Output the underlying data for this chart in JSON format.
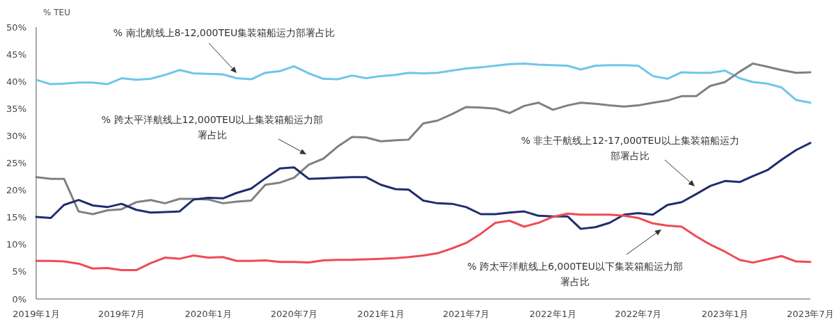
{
  "chart_data": {
    "type": "line",
    "ylabel": "% TEU",
    "grid": false,
    "marker": "none",
    "line_style": "solid",
    "x": [
      "2019-01",
      "2019-02",
      "2019-03",
      "2019-04",
      "2019-05",
      "2019-06",
      "2019-07",
      "2019-08",
      "2019-09",
      "2019-10",
      "2019-11",
      "2019-12",
      "2020-01",
      "2020-02",
      "2020-03",
      "2020-04",
      "2020-05",
      "2020-06",
      "2020-07",
      "2020-08",
      "2020-09",
      "2020-10",
      "2020-11",
      "2020-12",
      "2021-01",
      "2021-02",
      "2021-03",
      "2021-04",
      "2021-05",
      "2021-06",
      "2021-07",
      "2021-08",
      "2021-09",
      "2021-10",
      "2021-11",
      "2021-12",
      "2022-01",
      "2022-02",
      "2022-03",
      "2022-04",
      "2022-05",
      "2022-06",
      "2022-07",
      "2022-08",
      "2022-09",
      "2022-10",
      "2022-11",
      "2022-12",
      "2023-01",
      "2023-02",
      "2023-03",
      "2023-04",
      "2023-05",
      "2023-06",
      "2023-07"
    ],
    "xlim": [
      "2019-01",
      "2023-07"
    ],
    "xticks": [
      {
        "value": "2019-01",
        "label": "2019年1月"
      },
      {
        "value": "2019-07",
        "label": "2019年7月"
      },
      {
        "value": "2020-01",
        "label": "2020年1月"
      },
      {
        "value": "2020-07",
        "label": "2020年7月"
      },
      {
        "value": "2021-01",
        "label": "2021年1月"
      },
      {
        "value": "2021-07",
        "label": "2021年7月"
      },
      {
        "value": "2022-01",
        "label": "2022年1月"
      },
      {
        "value": "2022-07",
        "label": "2022年7月"
      },
      {
        "value": "2023-01",
        "label": "2023年1月"
      },
      {
        "value": "2023-07",
        "label": "2023年7月"
      }
    ],
    "ylim": [
      0,
      50
    ],
    "yticks": [
      {
        "value": 0,
        "label": "0%"
      },
      {
        "value": 5,
        "label": "5%"
      },
      {
        "value": 10,
        "label": "10%"
      },
      {
        "value": 15,
        "label": "15%"
      },
      {
        "value": 20,
        "label": "20%"
      },
      {
        "value": 25,
        "label": "25%"
      },
      {
        "value": 30,
        "label": "30%"
      },
      {
        "value": 35,
        "label": "35%"
      },
      {
        "value": 40,
        "label": "40%"
      },
      {
        "value": 45,
        "label": "45%"
      },
      {
        "value": 50,
        "label": "50%"
      }
    ],
    "series": [
      {
        "color": "#6ec6ea",
        "values": [
          40.3,
          39.5,
          39.6,
          39.8,
          39.8,
          39.5,
          40.6,
          40.3,
          40.5,
          41.2,
          42.1,
          41.5,
          41.4,
          41.3,
          40.6,
          40.4,
          41.6,
          41.9,
          42.8,
          41.5,
          40.5,
          40.4,
          41.1,
          40.6,
          41.0,
          41.2,
          41.6,
          41.5,
          41.6,
          42.0,
          42.4,
          42.6,
          42.9,
          43.2,
          43.3,
          43.1,
          43.0,
          42.9,
          42.2,
          42.9,
          43.0,
          43.0,
          42.9,
          41.0,
          40.5,
          41.7,
          41.6,
          41.6,
          42.0,
          40.6,
          39.9,
          39.6,
          38.9,
          36.6,
          36.1
        ]
      },
      {
        "color": "#808080",
        "values": [
          22.4,
          22.1,
          22.1,
          16.1,
          15.6,
          16.3,
          16.5,
          17.8,
          18.2,
          17.6,
          18.4,
          18.4,
          18.3,
          17.6,
          17.9,
          18.1,
          21.0,
          21.4,
          22.3,
          24.7,
          25.8,
          28.0,
          29.8,
          29.7,
          29.0,
          29.2,
          29.3,
          32.3,
          32.8,
          34.0,
          35.3,
          35.2,
          35.0,
          34.2,
          35.5,
          36.1,
          34.8,
          35.6,
          36.1,
          35.9,
          35.6,
          35.4,
          35.6,
          36.1,
          36.5,
          37.3,
          37.3,
          39.2,
          39.9,
          41.8,
          43.3,
          42.7,
          42.1,
          41.6,
          41.7
        ]
      },
      {
        "color": "#1f2d6e",
        "values": [
          15.1,
          14.9,
          17.3,
          18.2,
          17.2,
          16.9,
          17.5,
          16.4,
          15.9,
          16.0,
          16.1,
          18.3,
          18.6,
          18.5,
          19.5,
          20.3,
          22.2,
          24.0,
          24.2,
          22.1,
          22.2,
          22.3,
          22.4,
          22.4,
          21.0,
          20.2,
          20.1,
          18.1,
          17.6,
          17.5,
          16.9,
          15.6,
          15.6,
          15.9,
          16.1,
          15.3,
          15.2,
          15.2,
          12.9,
          13.2,
          14.0,
          15.5,
          15.8,
          15.5,
          17.3,
          17.8,
          19.3,
          20.8,
          21.7,
          21.5,
          22.6,
          23.7,
          25.6,
          27.4,
          28.7
        ]
      },
      {
        "color": "#ee4b55",
        "values": [
          7.0,
          7.0,
          6.9,
          6.5,
          5.6,
          5.7,
          5.3,
          5.3,
          6.6,
          7.6,
          7.4,
          8.0,
          7.6,
          7.7,
          7.0,
          7.0,
          7.1,
          6.8,
          6.8,
          6.7,
          7.1,
          7.2,
          7.2,
          7.3,
          7.4,
          7.5,
          7.7,
          8.0,
          8.4,
          9.3,
          10.3,
          12.0,
          14.0,
          14.4,
          13.3,
          14.0,
          15.1,
          15.7,
          15.5,
          15.5,
          15.5,
          15.3,
          14.9,
          13.9,
          13.5,
          13.3,
          11.5,
          10.0,
          8.7,
          7.2,
          6.7,
          7.3,
          7.9,
          6.9,
          6.8
        ]
      }
    ],
    "annotations": [
      "% 南北航线上8-12,000TEU集装箱船运力部署占比",
      "% 跨太平洋航线上12,000TEU以上集装箱船运力部署占比",
      "% 非主干航线上12-17,000TEU以上集装箱船运力部署占比",
      "% 跨太平洋航线上6,000TEU以下集装箱船运力部署占比"
    ]
  }
}
